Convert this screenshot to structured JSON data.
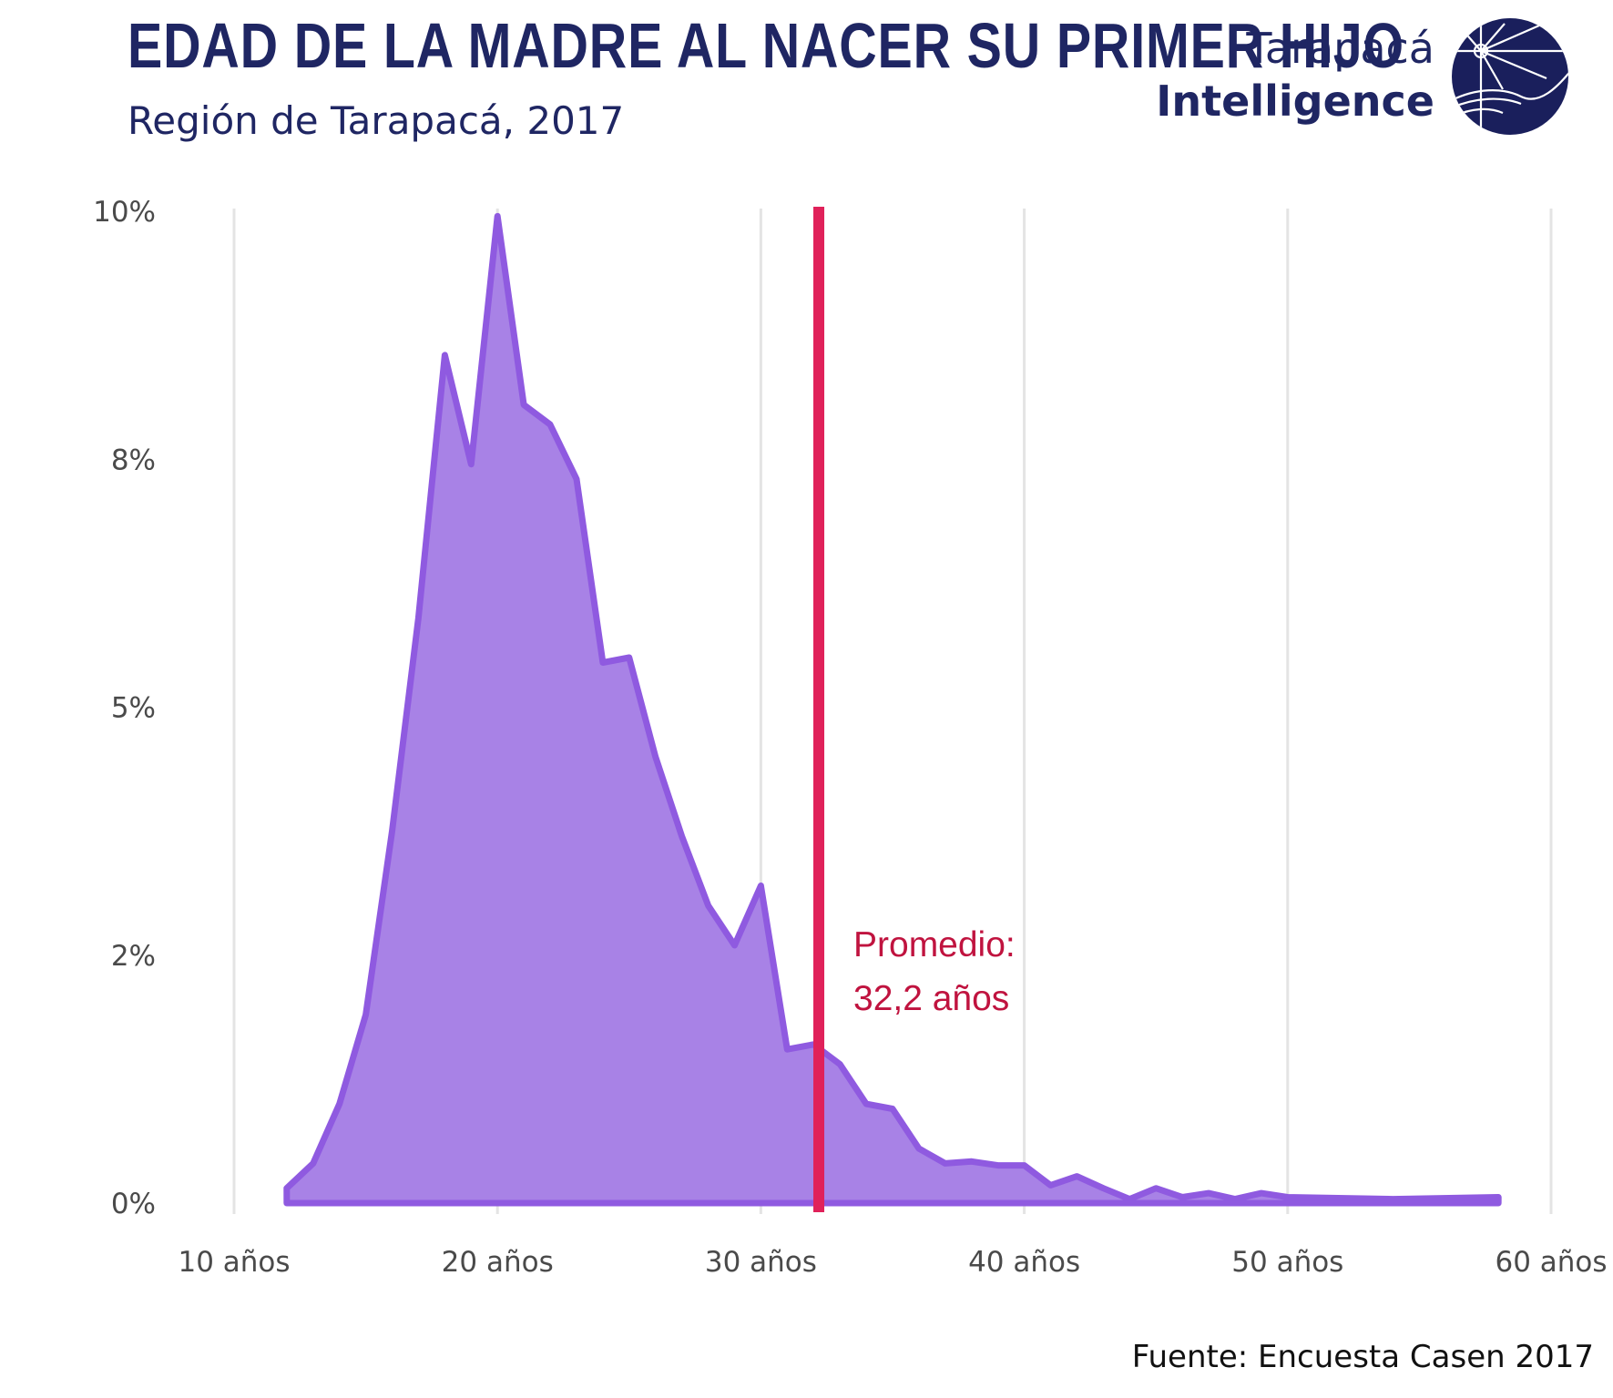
{
  "header": {
    "title": "EDAD DE LA MADRE AL NACER SU PRIMER HIJO",
    "subtitle": "Región de Tarapacá, 2017"
  },
  "brand": {
    "line1": "Tarapacá",
    "line2": "Intelligence",
    "color": "#1f2663"
  },
  "footer": {
    "source": "Fuente: Encuesta Casen 2017"
  },
  "annotation": {
    "line1": "Promedio:",
    "line2": "32,2 años",
    "color": "#c0133f",
    "line_color": "#e0215a"
  },
  "colors": {
    "area_fill": "#a67fe6",
    "area_stroke": "#8f5ae0",
    "grid": "#e4e4e4",
    "tick_text": "#4a4a4a"
  },
  "chart_data": {
    "type": "area",
    "title": "EDAD DE LA MADRE AL NACER SU PRIMER HIJO",
    "subtitle": "Región de Tarapacá, 2017",
    "xlabel": "",
    "ylabel": "",
    "xlim": [
      10,
      60
    ],
    "ylim": [
      0,
      10
    ],
    "x_ticks": [
      10,
      20,
      30,
      40,
      50,
      60
    ],
    "x_tick_labels": [
      "10 años",
      "20 años",
      "30 años",
      "40 años",
      "50 años",
      "60 años"
    ],
    "y_ticks": [
      0,
      2.5,
      5,
      7.5,
      10
    ],
    "y_tick_labels": [
      "0%",
      "2%",
      "5%",
      "8%",
      "10%"
    ],
    "grid": "vertical",
    "mean_line": {
      "x": 32.2,
      "label": "Promedio: 32,2 años"
    },
    "series": [
      {
        "x": [
          12,
          13,
          14,
          15,
          16,
          17,
          18,
          19,
          20,
          21,
          22,
          23,
          24,
          25,
          26,
          27,
          28,
          29,
          30,
          31,
          32,
          33,
          34,
          35,
          36,
          37,
          38,
          39,
          40,
          41,
          42,
          43,
          44,
          45,
          46,
          47,
          48,
          49,
          50,
          54,
          58
        ],
        "values": [
          0.15,
          0.4,
          1.0,
          1.9,
          3.75,
          5.9,
          8.55,
          7.45,
          9.95,
          8.05,
          7.85,
          7.3,
          5.45,
          5.5,
          4.5,
          3.7,
          3.0,
          2.6,
          3.2,
          1.55,
          1.6,
          1.4,
          1.0,
          0.95,
          0.55,
          0.4,
          0.42,
          0.38,
          0.38,
          0.18,
          0.27,
          0.15,
          0.04,
          0.15,
          0.06,
          0.1,
          0.04,
          0.1,
          0.06,
          0.04,
          0.06
        ]
      }
    ]
  }
}
